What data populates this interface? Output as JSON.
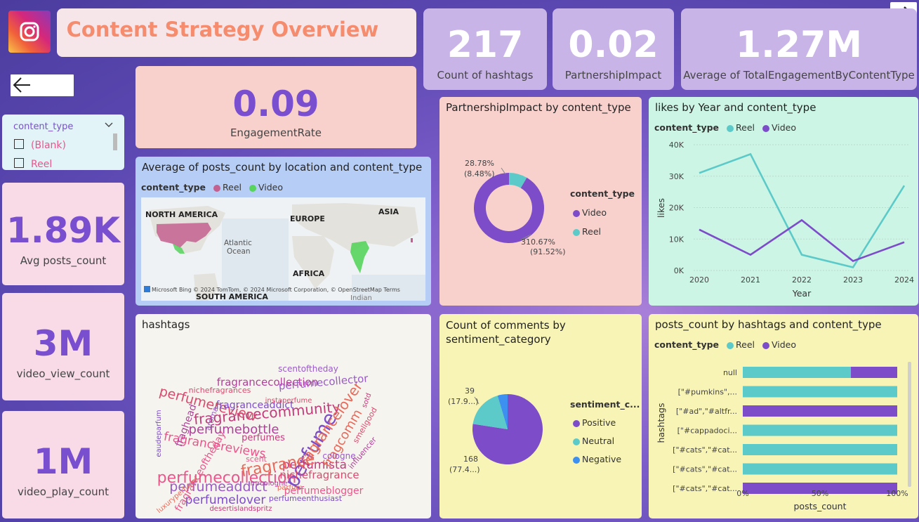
{
  "colors": {
    "reel": "#5ccac8",
    "video": "#7c4cc9",
    "map_reel": "#c4608f",
    "map_video": "#56d45c",
    "negative": "#3d8ff0"
  },
  "header": {
    "title": "Content Strategy Overview",
    "logo_icon": "instagram-icon"
  },
  "nav": {
    "back_icon": "arrow-left-icon",
    "forward_icon": "arrow-right-icon"
  },
  "kpis": {
    "hashtags": {
      "value": "217",
      "label": "Count of hashtags"
    },
    "partnership": {
      "value": "0.02",
      "label": "PartnershipImpact"
    },
    "total_engagement": {
      "value": "1.27M",
      "label": "Average of TotalEngagementByContentType"
    },
    "engagement_rate": {
      "value": "0.09",
      "label": "EngagementRate"
    },
    "avg_posts": {
      "value": "1.89K",
      "label": "Avg posts_count"
    },
    "video_view": {
      "value": "3M",
      "label": "video_view_count"
    },
    "video_play": {
      "value": "1M",
      "label": "video_play_count"
    }
  },
  "slicer": {
    "title": "content_type",
    "options": [
      "(Blank)",
      "Reel"
    ]
  },
  "map": {
    "title": "Average of posts_count by location and content_type",
    "legend_title": "content_type",
    "legend": [
      "Reel",
      "Video"
    ],
    "labels": {
      "na": "NORTH AMERICA",
      "eu": "EUROPE",
      "asia": "ASIA",
      "atlantic": "Atlantic\nOcean",
      "africa": "AFRICA",
      "sa": "SOUTH AMERICA",
      "indian": "Indian"
    },
    "attribution": "© 2024 TomTom, © 2024 Microsoft Corporation, © OpenStreetMap  Terms",
    "bing": "Microsoft Bing"
  },
  "wordcloud": {
    "title": "hashtags",
    "words": [
      "perfumecollection",
      "perfume",
      "fragrancecommunity",
      "fragrancelover",
      "perfumeaddict",
      "perfumereview",
      "perfumebottle",
      "fragrancereviews",
      "perfumelover",
      "perfumista",
      "fragrance",
      "perfumecollector",
      "nichefragrance",
      "fragrancecollection",
      "perfumeblogger",
      "fragranceaddict",
      "perfumes",
      "fragcomm",
      "scentoftheday",
      "nichefragrances",
      "fraghead",
      "fragranceoftheday",
      "perfumeenthusiast",
      "desertislandspritz",
      "luxuryperfume",
      "cologne",
      "smellgood",
      "influencer",
      "scent",
      "eaudeparfum",
      "sotd",
      "parfum",
      "aroma",
      "instaperfume",
      "mrcologne"
    ]
  },
  "donut": {
    "title": "PartnershipImpact by content_type",
    "legend_title": "content_type",
    "label_reel": "28.78%",
    "label_reel_pct": "(8.48%)",
    "label_video": "310.67%",
    "label_video_pct": "(91.52%)"
  },
  "pie": {
    "title": "Count of comments by sentiment_category",
    "legend_title": "sentiment_c...",
    "label_neutral": "39",
    "label_neutral_pct": "(17.9...)",
    "label_positive": "168",
    "label_positive_pct": "(77.4...)"
  },
  "line": {
    "title": "likes by Year and content_type",
    "legend_title": "content_type"
  },
  "bar": {
    "title": "posts_count by hashtags and content_type",
    "legend_title": "content_type"
  },
  "chart_data": [
    {
      "type": "pie",
      "title": "PartnershipImpact by content_type",
      "legend": {
        "title": "content_type",
        "entries": [
          "Video",
          "Reel"
        ],
        "placement": "right"
      },
      "donut": true,
      "slices": [
        {
          "name": "Video",
          "value": 310.67,
          "percent": 91.52
        },
        {
          "name": "Reel",
          "value": 28.78,
          "percent": 8.48
        }
      ]
    },
    {
      "type": "pie",
      "title": "Count of comments by sentiment_category",
      "legend": {
        "title": "sentiment_c...",
        "entries": [
          "Positive",
          "Neutral",
          "Negative"
        ],
        "placement": "right"
      },
      "slices": [
        {
          "name": "Positive",
          "value": 168,
          "percent": 77.4
        },
        {
          "name": "Neutral",
          "value": 39,
          "percent": 17.9
        },
        {
          "name": "Negative",
          "value": 10,
          "percent": 4.7
        }
      ]
    },
    {
      "type": "line",
      "title": "likes by Year and content_type",
      "xlabel": "Year",
      "ylabel": "likes",
      "x": [
        2020,
        2021,
        2022,
        2023,
        2024
      ],
      "ylim": [
        0,
        40000
      ],
      "yticks": [
        "0K",
        "10K",
        "20K",
        "30K",
        "40K"
      ],
      "legend": {
        "title": "content_type",
        "placement": "top-left"
      },
      "series": [
        {
          "name": "Reel",
          "values": [
            31000,
            37000,
            5000,
            1000,
            27000
          ]
        },
        {
          "name": "Video",
          "values": [
            13000,
            5000,
            16000,
            3000,
            9000
          ]
        }
      ]
    },
    {
      "type": "bar",
      "orientation": "horizontal",
      "stacked": "100%",
      "title": "posts_count by hashtags and content_type",
      "xlabel": "posts_count",
      "ylabel": "hashtags",
      "xticks": [
        "0%",
        "50%",
        "100%"
      ],
      "legend": {
        "title": "content_type",
        "placement": "top-left"
      },
      "categories": [
        "null",
        "[\"#pumkins\",...",
        "[\"#ad\",\"#altfr...",
        "[\"#cappadoci...",
        "[\"#cats\",\"#cat...",
        "[\"#cats\",\"#cat...",
        "[\"#cats\",\"#cat..."
      ],
      "series": [
        {
          "name": "Reel",
          "values": [
            70,
            100,
            0,
            100,
            100,
            100,
            0
          ]
        },
        {
          "name": "Video",
          "values": [
            30,
            0,
            100,
            0,
            0,
            0,
            100
          ]
        }
      ]
    }
  ]
}
